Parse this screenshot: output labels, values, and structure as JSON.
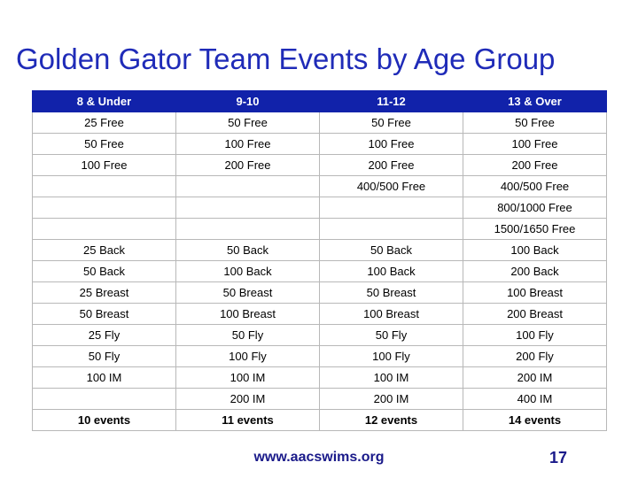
{
  "slide": {
    "title": "Golden Gator Team Events by Age Group",
    "footer_url": "www.aacswims.org",
    "page_number": "17"
  },
  "table": {
    "headers": [
      "8 & Under",
      "9-10",
      "11-12",
      "13 & Over"
    ],
    "rows": [
      [
        "25 Free",
        "50 Free",
        "50 Free",
        "50 Free"
      ],
      [
        "50 Free",
        "100 Free",
        "100 Free",
        "100 Free"
      ],
      [
        "100 Free",
        "200 Free",
        "200 Free",
        "200 Free"
      ],
      [
        "",
        "",
        "400/500 Free",
        "400/500 Free"
      ],
      [
        "",
        "",
        "",
        "800/1000 Free"
      ],
      [
        "",
        "",
        "",
        "1500/1650 Free"
      ],
      [
        "25 Back",
        "50 Back",
        "50 Back",
        "100 Back"
      ],
      [
        "50 Back",
        "100 Back",
        "100 Back",
        "200 Back"
      ],
      [
        "25 Breast",
        "50 Breast",
        "50 Breast",
        "100 Breast"
      ],
      [
        "50 Breast",
        "100 Breast",
        "100 Breast",
        "200 Breast"
      ],
      [
        "25 Fly",
        "50 Fly",
        "50 Fly",
        "100 Fly"
      ],
      [
        "50 Fly",
        "100 Fly",
        "100 Fly",
        "200 Fly"
      ],
      [
        "100 IM",
        "100 IM",
        "100 IM",
        "200 IM"
      ],
      [
        "",
        "200 IM",
        "200 IM",
        "400 IM"
      ]
    ],
    "totals": [
      "10 events",
      "11 events",
      "12 events",
      "14 events"
    ]
  },
  "colors": {
    "title": "#1f2bb8",
    "header_bg": "#1122aa",
    "header_text": "#ffffff",
    "footer_text": "#1a1a8a"
  }
}
